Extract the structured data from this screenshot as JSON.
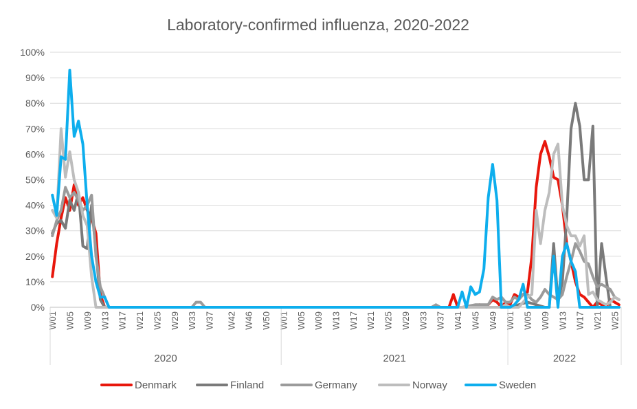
{
  "chart_data": {
    "type": "line",
    "title": "Laboratory-confirmed influenza, 2020-2022",
    "xlabel": "",
    "ylabel": "",
    "ylim": [
      0,
      100
    ],
    "y_ticks": [
      "0%",
      "10%",
      "20%",
      "30%",
      "40%",
      "50%",
      "60%",
      "70%",
      "80%",
      "90%",
      "100%"
    ],
    "y_tick_values": [
      0,
      10,
      20,
      30,
      40,
      50,
      60,
      70,
      80,
      90,
      100
    ],
    "grid": "horizontal",
    "legend_position": "bottom",
    "year_groups": [
      {
        "label": "2020",
        "start": 1,
        "end": 53
      },
      {
        "label": "2021",
        "start": 54,
        "end": 105
      },
      {
        "label": "2022",
        "start": 106,
        "end": 131
      }
    ],
    "x_tick_labels": [
      {
        "i": 1,
        "label": "W01"
      },
      {
        "i": 5,
        "label": "W05"
      },
      {
        "i": 9,
        "label": "W09"
      },
      {
        "i": 13,
        "label": "W13"
      },
      {
        "i": 17,
        "label": "W17"
      },
      {
        "i": 21,
        "label": "W21"
      },
      {
        "i": 25,
        "label": "W25"
      },
      {
        "i": 29,
        "label": "W29"
      },
      {
        "i": 33,
        "label": "W33"
      },
      {
        "i": 37,
        "label": "W37"
      },
      {
        "i": 42,
        "label": "W42"
      },
      {
        "i": 46,
        "label": "W46"
      },
      {
        "i": 50,
        "label": "W50"
      },
      {
        "i": 54,
        "label": "W01"
      },
      {
        "i": 58,
        "label": "W05"
      },
      {
        "i": 62,
        "label": "W09"
      },
      {
        "i": 66,
        "label": "W13"
      },
      {
        "i": 70,
        "label": "W17"
      },
      {
        "i": 74,
        "label": "W21"
      },
      {
        "i": 78,
        "label": "W25"
      },
      {
        "i": 82,
        "label": "W29"
      },
      {
        "i": 86,
        "label": "W33"
      },
      {
        "i": 90,
        "label": "W37"
      },
      {
        "i": 94,
        "label": "W41"
      },
      {
        "i": 98,
        "label": "W45"
      },
      {
        "i": 102,
        "label": "W49"
      },
      {
        "i": 106,
        "label": "W01"
      },
      {
        "i": 110,
        "label": "W05"
      },
      {
        "i": 114,
        "label": "W09"
      },
      {
        "i": 118,
        "label": "W13"
      },
      {
        "i": 122,
        "label": "W17"
      },
      {
        "i": 126,
        "label": "W21"
      },
      {
        "i": 130,
        "label": "W25"
      }
    ],
    "series": [
      {
        "name": "Denmark",
        "color": "#e8170c",
        "points": [
          [
            1,
            12
          ],
          [
            2,
            25
          ],
          [
            3,
            35
          ],
          [
            4,
            43
          ],
          [
            5,
            38
          ],
          [
            6,
            48
          ],
          [
            7,
            40
          ],
          [
            8,
            43
          ],
          [
            9,
            38
          ],
          [
            10,
            35
          ],
          [
            11,
            29
          ],
          [
            12,
            5
          ],
          [
            13,
            0
          ],
          [
            14,
            0
          ],
          [
            20,
            0
          ],
          [
            30,
            0
          ],
          [
            34,
            0
          ],
          [
            35,
            0
          ],
          [
            45,
            0
          ],
          [
            60,
            0
          ],
          [
            80,
            0
          ],
          [
            92,
            0
          ],
          [
            93,
            5
          ],
          [
            94,
            0
          ],
          [
            97,
            0
          ],
          [
            98,
            0
          ],
          [
            99,
            1
          ],
          [
            100,
            0
          ],
          [
            101,
            1
          ],
          [
            102,
            3
          ],
          [
            103,
            2
          ],
          [
            104,
            0
          ],
          [
            105,
            2
          ],
          [
            106,
            1
          ],
          [
            107,
            5
          ],
          [
            108,
            4
          ],
          [
            109,
            5
          ],
          [
            110,
            6
          ],
          [
            111,
            20
          ],
          [
            112,
            47
          ],
          [
            113,
            60
          ],
          [
            114,
            65
          ],
          [
            115,
            59
          ],
          [
            116,
            51
          ],
          [
            117,
            50
          ],
          [
            118,
            40
          ],
          [
            119,
            25
          ],
          [
            120,
            18
          ],
          [
            121,
            10
          ],
          [
            122,
            5
          ],
          [
            123,
            4
          ],
          [
            124,
            2
          ],
          [
            125,
            0
          ],
          [
            126,
            2
          ],
          [
            127,
            1
          ],
          [
            128,
            0
          ],
          [
            129,
            3
          ],
          [
            130,
            2
          ],
          [
            131,
            1
          ]
        ]
      },
      {
        "name": "Finland",
        "color": "#7a7a7a",
        "points": [
          [
            1,
            29
          ],
          [
            2,
            33
          ],
          [
            3,
            34
          ],
          [
            4,
            31
          ],
          [
            5,
            42
          ],
          [
            6,
            38
          ],
          [
            7,
            45
          ],
          [
            8,
            24
          ],
          [
            9,
            23
          ],
          [
            10,
            40
          ],
          [
            11,
            22
          ],
          [
            12,
            3
          ],
          [
            13,
            0
          ],
          [
            20,
            0
          ],
          [
            30,
            0
          ],
          [
            40,
            0
          ],
          [
            60,
            0
          ],
          [
            80,
            0
          ],
          [
            92,
            0
          ],
          [
            100,
            0
          ],
          [
            104,
            0
          ],
          [
            105,
            1
          ],
          [
            106,
            0
          ],
          [
            110,
            2
          ],
          [
            114,
            0
          ],
          [
            115,
            0
          ],
          [
            116,
            25
          ],
          [
            117,
            2
          ],
          [
            118,
            10
          ],
          [
            119,
            35
          ],
          [
            120,
            70
          ],
          [
            121,
            80
          ],
          [
            122,
            71
          ],
          [
            123,
            50
          ],
          [
            124,
            50
          ],
          [
            125,
            71
          ],
          [
            126,
            0
          ],
          [
            127,
            25
          ],
          [
            128,
            12
          ],
          [
            129,
            0
          ],
          [
            130,
            0
          ],
          [
            131,
            0
          ]
        ]
      },
      {
        "name": "Germany",
        "color": "#9b9b9b",
        "points": [
          [
            1,
            28
          ],
          [
            2,
            34
          ],
          [
            3,
            38
          ],
          [
            4,
            47
          ],
          [
            5,
            43
          ],
          [
            6,
            45
          ],
          [
            7,
            42
          ],
          [
            8,
            38
          ],
          [
            9,
            40
          ],
          [
            10,
            44
          ],
          [
            11,
            20
          ],
          [
            12,
            8
          ],
          [
            13,
            4
          ],
          [
            14,
            0
          ],
          [
            20,
            0
          ],
          [
            30,
            0
          ],
          [
            33,
            0
          ],
          [
            34,
            2
          ],
          [
            35,
            2
          ],
          [
            36,
            0
          ],
          [
            40,
            0
          ],
          [
            60,
            0
          ],
          [
            80,
            0
          ],
          [
            88,
            0
          ],
          [
            89,
            1
          ],
          [
            90,
            0
          ],
          [
            92,
            0
          ],
          [
            95,
            0
          ],
          [
            98,
            1
          ],
          [
            100,
            1
          ],
          [
            101,
            1
          ],
          [
            102,
            4
          ],
          [
            103,
            3
          ],
          [
            104,
            4
          ],
          [
            105,
            2
          ],
          [
            106,
            2
          ],
          [
            107,
            4
          ],
          [
            108,
            3
          ],
          [
            109,
            5
          ],
          [
            110,
            5
          ],
          [
            111,
            3
          ],
          [
            112,
            2
          ],
          [
            113,
            4
          ],
          [
            114,
            7
          ],
          [
            115,
            5
          ],
          [
            116,
            4
          ],
          [
            117,
            3
          ],
          [
            118,
            5
          ],
          [
            119,
            12
          ],
          [
            120,
            18
          ],
          [
            121,
            25
          ],
          [
            122,
            22
          ],
          [
            123,
            18
          ],
          [
            124,
            17
          ],
          [
            125,
            12
          ],
          [
            126,
            8
          ],
          [
            127,
            9
          ],
          [
            128,
            8
          ],
          [
            129,
            7
          ],
          [
            130,
            4
          ],
          [
            131,
            3
          ]
        ]
      },
      {
        "name": "Norway",
        "color": "#bdbdbd",
        "points": [
          [
            1,
            38
          ],
          [
            2,
            35
          ],
          [
            3,
            70
          ],
          [
            4,
            51
          ],
          [
            5,
            61
          ],
          [
            6,
            50
          ],
          [
            7,
            45
          ],
          [
            8,
            36
          ],
          [
            9,
            32
          ],
          [
            10,
            12
          ],
          [
            11,
            0
          ],
          [
            20,
            0
          ],
          [
            30,
            0
          ],
          [
            40,
            0
          ],
          [
            60,
            0
          ],
          [
            80,
            0
          ],
          [
            92,
            0
          ],
          [
            100,
            0
          ],
          [
            104,
            0
          ],
          [
            105,
            1
          ],
          [
            106,
            0
          ],
          [
            108,
            0
          ],
          [
            109,
            2
          ],
          [
            110,
            4
          ],
          [
            111,
            5
          ],
          [
            112,
            38
          ],
          [
            113,
            25
          ],
          [
            114,
            38
          ],
          [
            115,
            45
          ],
          [
            116,
            60
          ],
          [
            117,
            64
          ],
          [
            118,
            40
          ],
          [
            119,
            32
          ],
          [
            120,
            28
          ],
          [
            121,
            28
          ],
          [
            122,
            24
          ],
          [
            123,
            28
          ],
          [
            124,
            5
          ],
          [
            125,
            6
          ],
          [
            126,
            3
          ],
          [
            127,
            2
          ],
          [
            128,
            1
          ],
          [
            129,
            2
          ],
          [
            130,
            4
          ],
          [
            131,
            3
          ]
        ]
      },
      {
        "name": "Sweden",
        "color": "#0eaeed",
        "points": [
          [
            1,
            44
          ],
          [
            2,
            36
          ],
          [
            3,
            59
          ],
          [
            4,
            58
          ],
          [
            5,
            93
          ],
          [
            6,
            67
          ],
          [
            7,
            73
          ],
          [
            8,
            64
          ],
          [
            9,
            40
          ],
          [
            10,
            20
          ],
          [
            11,
            10
          ],
          [
            12,
            4
          ],
          [
            13,
            4
          ],
          [
            14,
            0
          ],
          [
            20,
            0
          ],
          [
            30,
            0
          ],
          [
            40,
            0
          ],
          [
            60,
            0
          ],
          [
            80,
            0
          ],
          [
            92,
            0
          ],
          [
            93,
            0
          ],
          [
            94,
            0
          ],
          [
            95,
            6
          ],
          [
            96,
            0
          ],
          [
            97,
            8
          ],
          [
            98,
            5
          ],
          [
            99,
            6
          ],
          [
            100,
            15
          ],
          [
            101,
            43
          ],
          [
            102,
            56
          ],
          [
            103,
            42
          ],
          [
            104,
            0
          ],
          [
            105,
            0
          ],
          [
            106,
            0
          ],
          [
            107,
            1
          ],
          [
            108,
            3
          ],
          [
            109,
            9
          ],
          [
            110,
            0
          ],
          [
            113,
            0
          ],
          [
            114,
            0
          ],
          [
            115,
            0
          ],
          [
            116,
            20
          ],
          [
            117,
            0
          ],
          [
            118,
            20
          ],
          [
            119,
            25
          ],
          [
            120,
            18
          ],
          [
            121,
            14
          ],
          [
            122,
            0
          ],
          [
            126,
            0
          ],
          [
            131,
            0
          ]
        ]
      }
    ]
  }
}
